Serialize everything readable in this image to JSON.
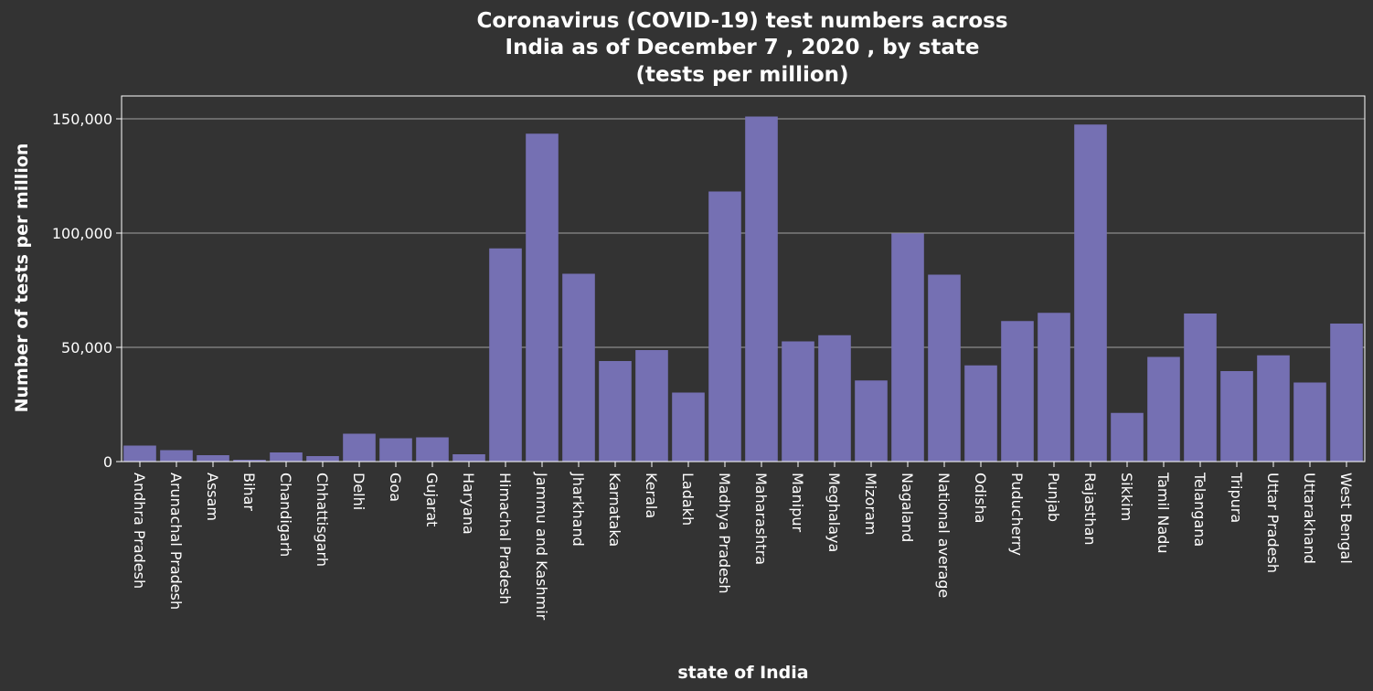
{
  "chart_data": {
    "type": "bar",
    "title_lines": [
      "Coronavirus (COVID-19) test numbers across",
      "India as of December 7 , 2020 , by state",
      "(tests per million)"
    ],
    "xlabel": "state of India",
    "ylabel": "Number of tests per million",
    "ylim": [
      0,
      160000
    ],
    "yticks": [
      0,
      50000,
      100000,
      150000
    ],
    "ytick_labels": [
      "0",
      "50,000",
      "100,000",
      "150,000"
    ],
    "grid": "horizontal",
    "bar_color": "#7570b3",
    "background_color": "#333333",
    "categories": [
      "Andhra Pradesh",
      "Arunachal Pradesh",
      "Assam",
      "Bihar",
      "Chandigarh",
      "Chhattisgarh",
      "Delhi",
      "Goa",
      "Gujarat",
      "Haryana",
      "Himachal Pradesh",
      "Jammu and Kashmir",
      "Jharkhand",
      "Karnataka",
      "Kerala",
      "Ladakh",
      "Madhya Pradesh",
      "Maharashtra",
      "Manipur",
      "Meghalaya",
      "Mizoram",
      "Nagaland",
      "National average",
      "Odisha",
      "Puducherry",
      "Punjab",
      "Rajasthan",
      "Sikkim",
      "Tamil Nadu",
      "Telangana",
      "Tripura",
      "Uttar Pradesh",
      "Uttarakhand",
      "West Bengal"
    ],
    "values": [
      7000,
      5000,
      2800,
      800,
      4000,
      2400,
      12200,
      10200,
      10600,
      3200,
      93300,
      143500,
      82200,
      44000,
      48800,
      30200,
      118200,
      151000,
      52600,
      55300,
      35500,
      99900,
      81800,
      42100,
      61500,
      65100,
      147500,
      21300,
      45800,
      64800,
      39600,
      46500,
      34600,
      60400
    ]
  }
}
